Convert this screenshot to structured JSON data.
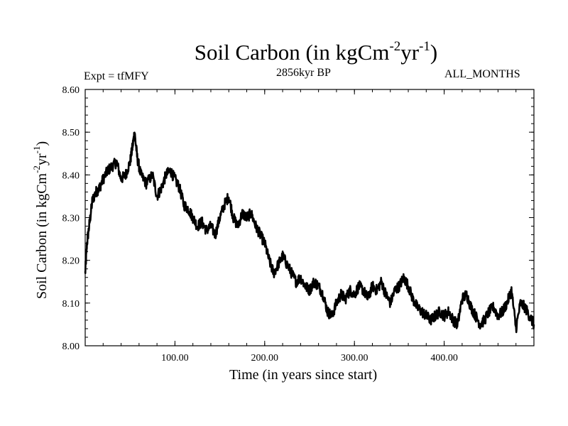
{
  "chart_data": {
    "type": "line",
    "title": {
      "base": "Soil Carbon (in kgCm",
      "exp1": "-2",
      "mid": "yr",
      "exp2": "-1",
      "end": ")"
    },
    "left_annotation": "Expt = tfMFY",
    "subtitle": "2856kyr BP",
    "right_annotation": "ALL_MONTHS",
    "xlabel": "Time (in years since start)",
    "ylabel": {
      "base": "Soil Carbon (in kgCm",
      "exp1": "-2",
      "mid": "yr",
      "exp2": "-1",
      "end": ")"
    },
    "xlim": [
      0,
      500
    ],
    "ylim": [
      8.0,
      8.6
    ],
    "x_ticks": [
      100,
      200,
      300,
      400
    ],
    "x_tick_labels": [
      "100.00",
      "200.00",
      "300.00",
      "400.00"
    ],
    "y_ticks": [
      8.0,
      8.1,
      8.2,
      8.3,
      8.4,
      8.5,
      8.6
    ],
    "y_tick_labels": [
      "8.00",
      "8.10",
      "8.20",
      "8.30",
      "8.40",
      "8.50",
      "8.60"
    ],
    "line_color": "#000000",
    "series": [
      {
        "name": "Soil Carbon",
        "x": [
          0,
          2,
          5,
          8,
          12,
          16,
          20,
          25,
          30,
          35,
          40,
          45,
          50,
          53,
          55,
          58,
          62,
          68,
          75,
          80,
          85,
          90,
          95,
          100,
          105,
          110,
          115,
          120,
          125,
          130,
          135,
          140,
          145,
          150,
          155,
          160,
          165,
          170,
          175,
          180,
          185,
          190,
          195,
          200,
          205,
          210,
          215,
          220,
          225,
          230,
          235,
          240,
          245,
          250,
          255,
          260,
          265,
          270,
          275,
          280,
          285,
          290,
          295,
          300,
          305,
          310,
          315,
          320,
          325,
          330,
          335,
          340,
          345,
          350,
          355,
          360,
          365,
          370,
          375,
          380,
          385,
          390,
          395,
          400,
          405,
          410,
          415,
          420,
          425,
          430,
          435,
          440,
          445,
          450,
          455,
          460,
          465,
          470,
          475,
          480,
          485,
          490,
          495,
          500
        ],
        "values": [
          8.17,
          8.24,
          8.29,
          8.34,
          8.36,
          8.37,
          8.39,
          8.41,
          8.42,
          8.43,
          8.39,
          8.4,
          8.43,
          8.47,
          8.5,
          8.44,
          8.4,
          8.38,
          8.4,
          8.35,
          8.37,
          8.4,
          8.41,
          8.39,
          8.37,
          8.33,
          8.32,
          8.3,
          8.28,
          8.29,
          8.27,
          8.28,
          8.26,
          8.3,
          8.33,
          8.35,
          8.3,
          8.28,
          8.31,
          8.3,
          8.31,
          8.28,
          8.26,
          8.24,
          8.2,
          8.17,
          8.19,
          8.21,
          8.19,
          8.17,
          8.15,
          8.16,
          8.14,
          8.13,
          8.15,
          8.14,
          8.12,
          8.08,
          8.07,
          8.1,
          8.12,
          8.11,
          8.13,
          8.12,
          8.14,
          8.13,
          8.11,
          8.14,
          8.13,
          8.15,
          8.12,
          8.1,
          8.13,
          8.14,
          8.16,
          8.14,
          8.11,
          8.09,
          8.08,
          8.07,
          8.06,
          8.07,
          8.08,
          8.07,
          8.08,
          8.06,
          8.05,
          8.11,
          8.12,
          8.09,
          8.07,
          8.05,
          8.06,
          8.08,
          8.09,
          8.07,
          8.08,
          8.1,
          8.13,
          8.04,
          8.1,
          8.09,
          8.07,
          8.05
        ]
      }
    ]
  }
}
